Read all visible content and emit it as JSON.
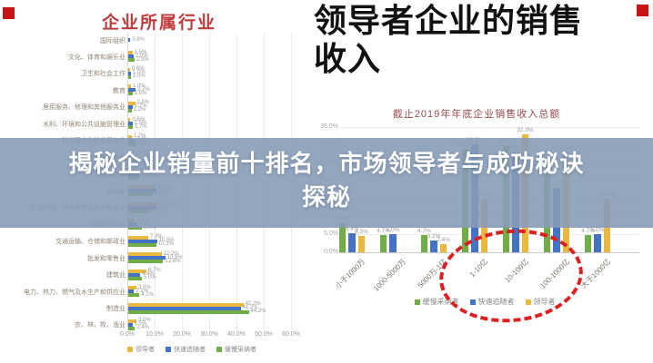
{
  "banner": {
    "line1": "揭秘企业销量前十排名，市场领导者与成功秘诀",
    "line2": "探秘",
    "bg_color": "#889bb7",
    "text_color": "#ffffff"
  },
  "decor": {
    "corner_square_color": "#c81414"
  },
  "palette": {
    "leader_yellow": "#eab83e",
    "follower_blue": "#4472c4",
    "adopter_green": "#70ad47",
    "left_title_red": "#bf3a3a",
    "subtitle_dark_red": "#9c4a4a",
    "annotation_red": "#dd1f1f"
  },
  "chart_data": [
    {
      "type": "bar",
      "orientation": "horizontal",
      "title": "企业所属行业",
      "xlabel": "",
      "ylabel": "",
      "xlim": [
        0,
        60
      ],
      "x_ticks": [
        "0.0%",
        "10.0%",
        "20.0%",
        "30.0%",
        "40.0%",
        "50.0%",
        "60.0%"
      ],
      "grid": true,
      "legend_position": "bottom",
      "categories": [
        "国际组织",
        "文化、体育和娱乐业",
        "卫生和社会工作",
        "教育",
        "居民服务、修理和其他服务业",
        "水利、环境和公共设施管理业",
        "科学研究和技术服务业",
        "租赁和商务服务业",
        "房地产业",
        "金融业",
        "信息传输、软件和信息技术服务业",
        "住宿和餐饮业",
        "交通运输、仓储和邮政业",
        "批发和零售业",
        "建筑业",
        "电力、热力、燃气及水生产和供应业",
        "制造业",
        "农、林、牧、渔业"
      ],
      "series": [
        {
          "name": "领导者",
          "color": "#eab83e",
          "values": [
            0,
            1.5,
            0.6,
            1.0,
            2.5,
            0.8,
            1.2,
            2.0,
            3.0,
            10.0,
            11.0,
            2.4,
            7.3,
            12.2,
            6.7,
            3.0,
            42.2,
            3.0
          ]
        },
        {
          "name": "快速追随者",
          "color": "#4472c4",
          "values": [
            0.8,
            2.0,
            1.0,
            2.7,
            1.7,
            1.5,
            2.2,
            3.0,
            4.2,
            10.4,
            10.2,
            3.2,
            10.5,
            13.5,
            4.4,
            2.1,
            41.2,
            1.5
          ]
        },
        {
          "name": "缓慢采纳者",
          "color": "#70ad47",
          "values": [
            0,
            2.3,
            1.0,
            1.5,
            1.2,
            1.7,
            3.0,
            3.3,
            4.0,
            9.0,
            8.0,
            5.0,
            10.3,
            12.8,
            5.0,
            4.1,
            44.2,
            2.4
          ]
        }
      ]
    },
    {
      "type": "bar",
      "orientation": "vertical",
      "heading": "领导者企业的销售收入",
      "subtitle": "截止2019年年底企业销售收入总额",
      "xlabel": "",
      "ylabel": "",
      "ylim": [
        0,
        35
      ],
      "y_ticks": [
        "35.0%",
        "30.0%",
        "25.0%",
        "20.0%",
        "15.0%",
        "10.0%",
        "5.0%",
        "0.0%"
      ],
      "grid": true,
      "legend_position": "bottom",
      "categories": [
        "小于1000万",
        "1000-5000万",
        "5000万-1亿",
        "1-10亿",
        "10-100亿",
        "100-1000亿",
        "大于1000亿"
      ],
      "series": [
        {
          "name": "缓慢采纳者",
          "color": "#70ad47",
          "values": [
            8.4,
            4.7,
            4.7,
            29.0,
            30.0,
            24.0,
            4.7
          ]
        },
        {
          "name": "快速追随者",
          "color": "#4472c4",
          "values": [
            5.4,
            5.0,
            3.2,
            30.3,
            28.0,
            18.0,
            5.0
          ]
        },
        {
          "name": "领导者",
          "color": "#eab83e",
          "values": [
            4.5,
            0,
            2.4,
            15.0,
            32.9,
            28.0,
            15.0
          ]
        }
      ],
      "annotation": {
        "shape": "dashed-ellipse",
        "color": "#dd1f1f",
        "highlights": [
          "1-10亿",
          "10-100亿",
          "100-1000亿"
        ]
      }
    }
  ]
}
